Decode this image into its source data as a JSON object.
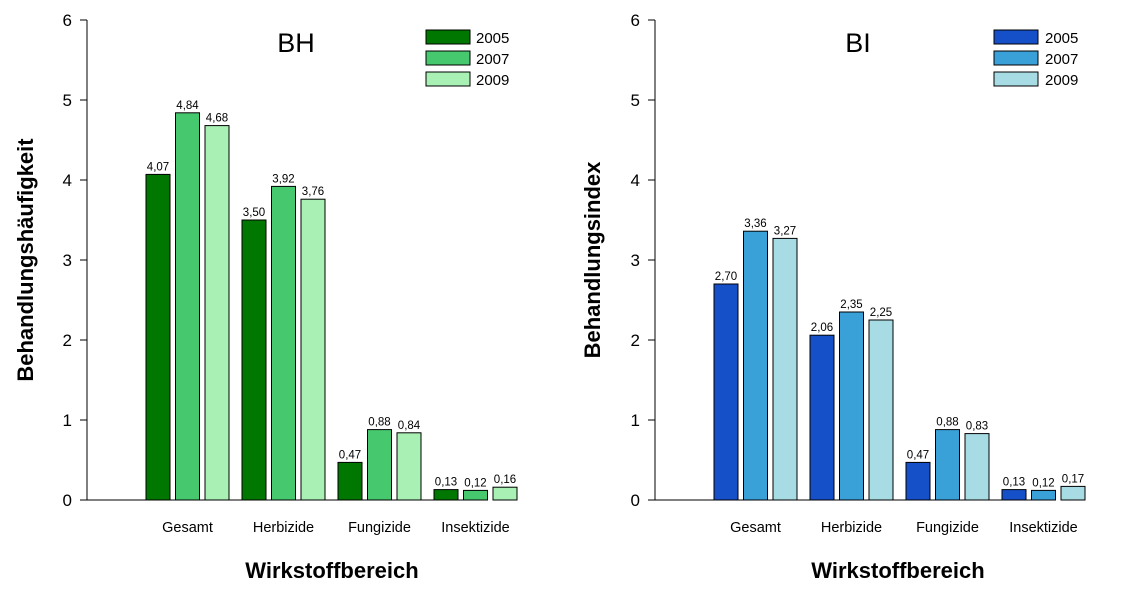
{
  "chart_data": [
    {
      "type": "bar",
      "title": "BH",
      "xlabel": "Wirkstoffbereich",
      "ylabel": "Behandlungshäufigkeit",
      "ylim": [
        0,
        6
      ],
      "yticks": [
        "0",
        "1",
        "2",
        "3",
        "4",
        "5",
        "6"
      ],
      "categories": [
        "Gesamt",
        "Herbizide",
        "Fungizide",
        "Insektizide"
      ],
      "series": [
        {
          "name": "2005",
          "color": "#007700",
          "values": [
            4.07,
            3.5,
            0.47,
            0.13
          ],
          "labels": [
            "4,07",
            "3,50",
            "0,47",
            "0,13"
          ]
        },
        {
          "name": "2007",
          "color": "#46c86e",
          "values": [
            4.84,
            3.92,
            0.88,
            0.12
          ],
          "labels": [
            "4,84",
            "3,92",
            "0,88",
            "0,12"
          ]
        },
        {
          "name": "2009",
          "color": "#a8f0b4",
          "values": [
            4.68,
            3.76,
            0.84,
            0.16
          ],
          "labels": [
            "4,68",
            "3,76",
            "0,84",
            "0,16"
          ]
        }
      ],
      "legend_position": "top-right",
      "grid": false
    },
    {
      "type": "bar",
      "title": "BI",
      "xlabel": "Wirkstoffbereich",
      "ylabel": "Behandlungsindex",
      "ylim": [
        0,
        6
      ],
      "yticks": [
        "0",
        "1",
        "2",
        "3",
        "4",
        "5",
        "6"
      ],
      "categories": [
        "Gesamt",
        "Herbizide",
        "Fungizide",
        "Insektizide"
      ],
      "series": [
        {
          "name": "2005",
          "color": "#1650c8",
          "values": [
            2.7,
            2.06,
            0.47,
            0.13
          ],
          "labels": [
            "2,70",
            "2,06",
            "0,47",
            "0,13"
          ]
        },
        {
          "name": "2007",
          "color": "#3aa0d8",
          "values": [
            3.36,
            2.35,
            0.88,
            0.12
          ],
          "labels": [
            "3,36",
            "2,35",
            "0,88",
            "0,12"
          ]
        },
        {
          "name": "2009",
          "color": "#a8dce4",
          "values": [
            3.27,
            2.25,
            0.83,
            0.17
          ],
          "labels": [
            "3,27",
            "2,25",
            "0,83",
            "0,17"
          ]
        }
      ],
      "legend_position": "top-right",
      "grid": false
    }
  ]
}
